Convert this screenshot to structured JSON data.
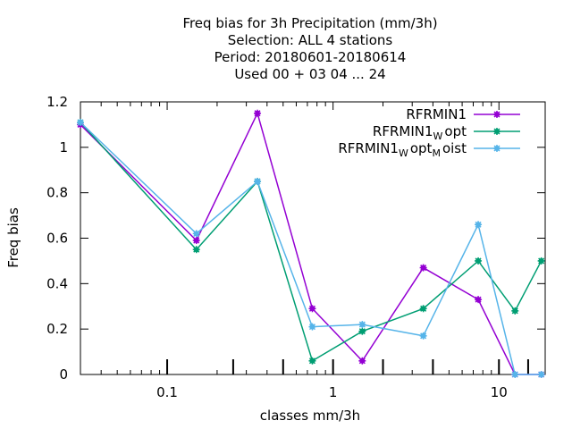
{
  "chart_data": {
    "type": "line",
    "title_lines": [
      "Freq bias  for 3h Precipitation (mm/3h)",
      "Selection: ALL      4 stations",
      "Period: 20180601-20180614",
      "Used  00 + 03 04 ... 24"
    ],
    "xlabel": "classes mm/3h",
    "ylabel": "Freq bias",
    "x_scale": "log",
    "xlim": [
      0.03,
      19
    ],
    "ylim": [
      0,
      1.2
    ],
    "x_ticks": [
      {
        "value": 0.1,
        "label": "0.1"
      },
      {
        "value": 1,
        "label": "1"
      },
      {
        "value": 10,
        "label": "10"
      }
    ],
    "y_ticks": [
      {
        "value": 0,
        "label": "0"
      },
      {
        "value": 0.2,
        "label": "0.2"
      },
      {
        "value": 0.4,
        "label": "0.4"
      },
      {
        "value": 0.6,
        "label": "0.6"
      },
      {
        "value": 0.8,
        "label": "0.8"
      },
      {
        "value": 1.0,
        "label": "1"
      },
      {
        "value": 1.2,
        "label": "1.2"
      }
    ],
    "class_ticks": [
      0.1,
      0.25,
      0.5,
      1,
      2,
      4,
      10,
      15
    ],
    "x": [
      0.03,
      0.15,
      0.35,
      0.75,
      1.5,
      3.5,
      7.5,
      12.5,
      18
    ],
    "legend_position": "top-right",
    "grid": false,
    "series": [
      {
        "name_parts": [
          {
            "text": "RFRMIN1",
            "sub": false
          }
        ],
        "color": "#9400d3",
        "values": [
          1.1,
          0.59,
          1.15,
          0.29,
          0.06,
          0.47,
          0.33,
          0.0,
          0.0
        ]
      },
      {
        "name_parts": [
          {
            "text": "RFRMIN1",
            "sub": false
          },
          {
            "text": "W",
            "sub": true
          },
          {
            "text": "opt",
            "sub": false
          }
        ],
        "color": "#009e73",
        "values": [
          1.11,
          0.55,
          0.85,
          0.06,
          0.19,
          0.29,
          0.5,
          0.28,
          0.5
        ]
      },
      {
        "name_parts": [
          {
            "text": "RFRMIN1",
            "sub": false
          },
          {
            "text": "W",
            "sub": true
          },
          {
            "text": "opt",
            "sub": false
          },
          {
            "text": "M",
            "sub": true
          },
          {
            "text": "oist",
            "sub": false
          }
        ],
        "color": "#56b4e9",
        "values": [
          1.11,
          0.62,
          0.85,
          0.21,
          0.22,
          0.17,
          0.66,
          0.0,
          0.0
        ]
      }
    ]
  }
}
